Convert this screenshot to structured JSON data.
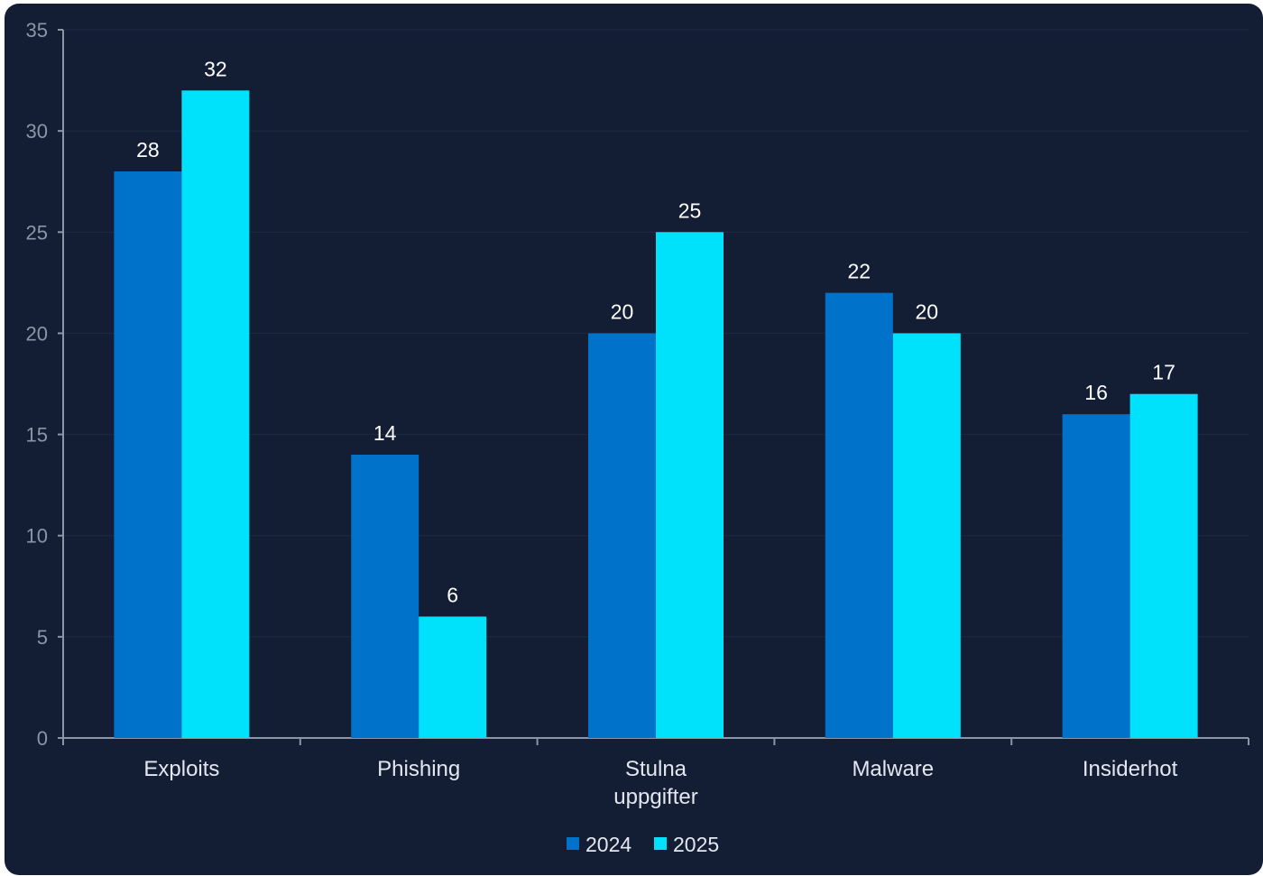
{
  "chart_data": {
    "type": "bar",
    "categories": [
      [
        "Exploits"
      ],
      [
        "Phishing"
      ],
      [
        "Stulna",
        "uppgifter"
      ],
      [
        "Malware"
      ],
      [
        "Insiderhot"
      ]
    ],
    "series": [
      {
        "name": "2024",
        "color": "#0072c9",
        "values": [
          28,
          14,
          20,
          22,
          16
        ]
      },
      {
        "name": "2025",
        "color": "#00e2fb",
        "values": [
          32,
          6,
          25,
          20,
          17
        ]
      }
    ],
    "ylim": [
      0,
      35
    ],
    "yticks": [
      "0",
      "5",
      "10",
      "15",
      "20",
      "25",
      "30",
      "35"
    ],
    "grid": true,
    "legend": "bottom-center",
    "colors": {
      "background": "#131e35",
      "axis": "#8b95a8",
      "grid": "#1e2a45"
    }
  }
}
